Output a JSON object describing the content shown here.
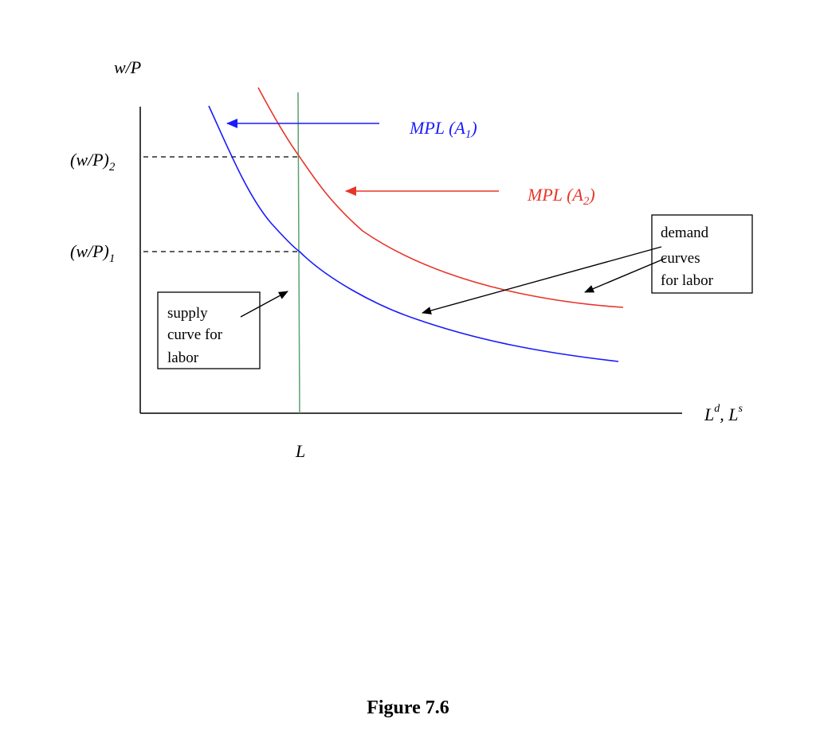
{
  "figure": {
    "caption": "Figure 7.6",
    "y_axis_label": "w/P",
    "x_axis_label": {
      "base1": "L",
      "sup1": "d",
      "sep": ", ",
      "base2": "L",
      "sup2": "s"
    },
    "x_axis_tick": "L",
    "y_ticks": {
      "upper": {
        "base": "(w/P)",
        "sub": "2"
      },
      "lower": {
        "base": "(w/P)",
        "sub": "1"
      }
    },
    "curve_labels": {
      "mpl_a1": {
        "prefix": "MPL (A",
        "sub": "1",
        "suffix": ")"
      },
      "mpl_a2": {
        "prefix": "MPL (A",
        "sub": "2",
        "suffix": ")"
      }
    },
    "callouts": {
      "demand": [
        "demand",
        "curves",
        "for labor"
      ],
      "supply": [
        "supply",
        "curve for",
        "labor"
      ]
    },
    "colors": {
      "mpl_a1": "#1a1aff",
      "mpl_a2": "#e8352a",
      "supply": "#5aa070",
      "axes": "#000000"
    },
    "icons": {
      "arrow_mpl_a1": "arrow-left-icon",
      "arrow_mpl_a2": "arrow-left-icon"
    }
  }
}
